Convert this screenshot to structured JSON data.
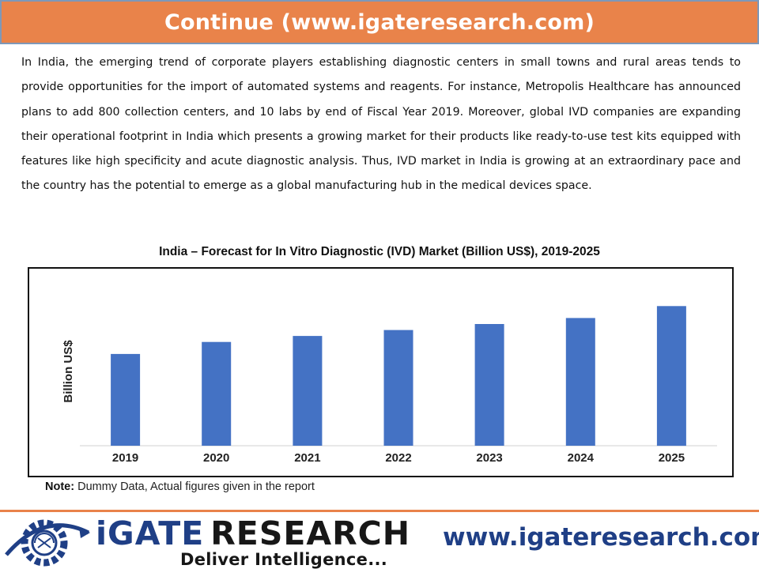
{
  "header": {
    "title": "Continue (www.igateresearch.com)"
  },
  "body": {
    "paragraph": "In India, the emerging trend of corporate players establishing diagnostic centers in small towns and rural areas tends to provide opportunities for the import of automated systems and reagents. For instance, Metropolis Healthcare has announced plans to add 800 collection centers, and 10 labs by end of Fiscal Year 2019. Moreover, global IVD companies are expanding their operational footprint in India which presents a growing market for their products like ready-to-use test kits equipped with features like high specificity and acute diagnostic analysis. Thus, IVD market in India is growing at an extraordinary pace and the country has the potential to emerge as a global manufacturing hub in the medical devices space."
  },
  "chart_data": {
    "type": "bar",
    "title": "India – Forecast for In Vitro Diagnostic (IVD) Market (Billion US$), 2019-2025",
    "categories": [
      "2019",
      "2020",
      "2021",
      "2022",
      "2023",
      "2024",
      "2025"
    ],
    "values": [
      4.6,
      5.2,
      5.5,
      5.8,
      6.1,
      6.4,
      7.0
    ],
    "xlabel": "",
    "ylabel": "Billion US$",
    "ylim": [
      0,
      8
    ],
    "grid": false,
    "bar_color": "#4472c4"
  },
  "note": {
    "label": "Note:",
    "text": " Dummy Data, Actual figures given in the report"
  },
  "footer": {
    "logo_word_1": "iGATE",
    "logo_word_2": "RESEARCH",
    "logo_tagline": "Deliver Intelligence...",
    "url": "www.igateresearch.com"
  },
  "colors": {
    "accent": "#e9834a",
    "brand_blue": "#1f3f86"
  }
}
